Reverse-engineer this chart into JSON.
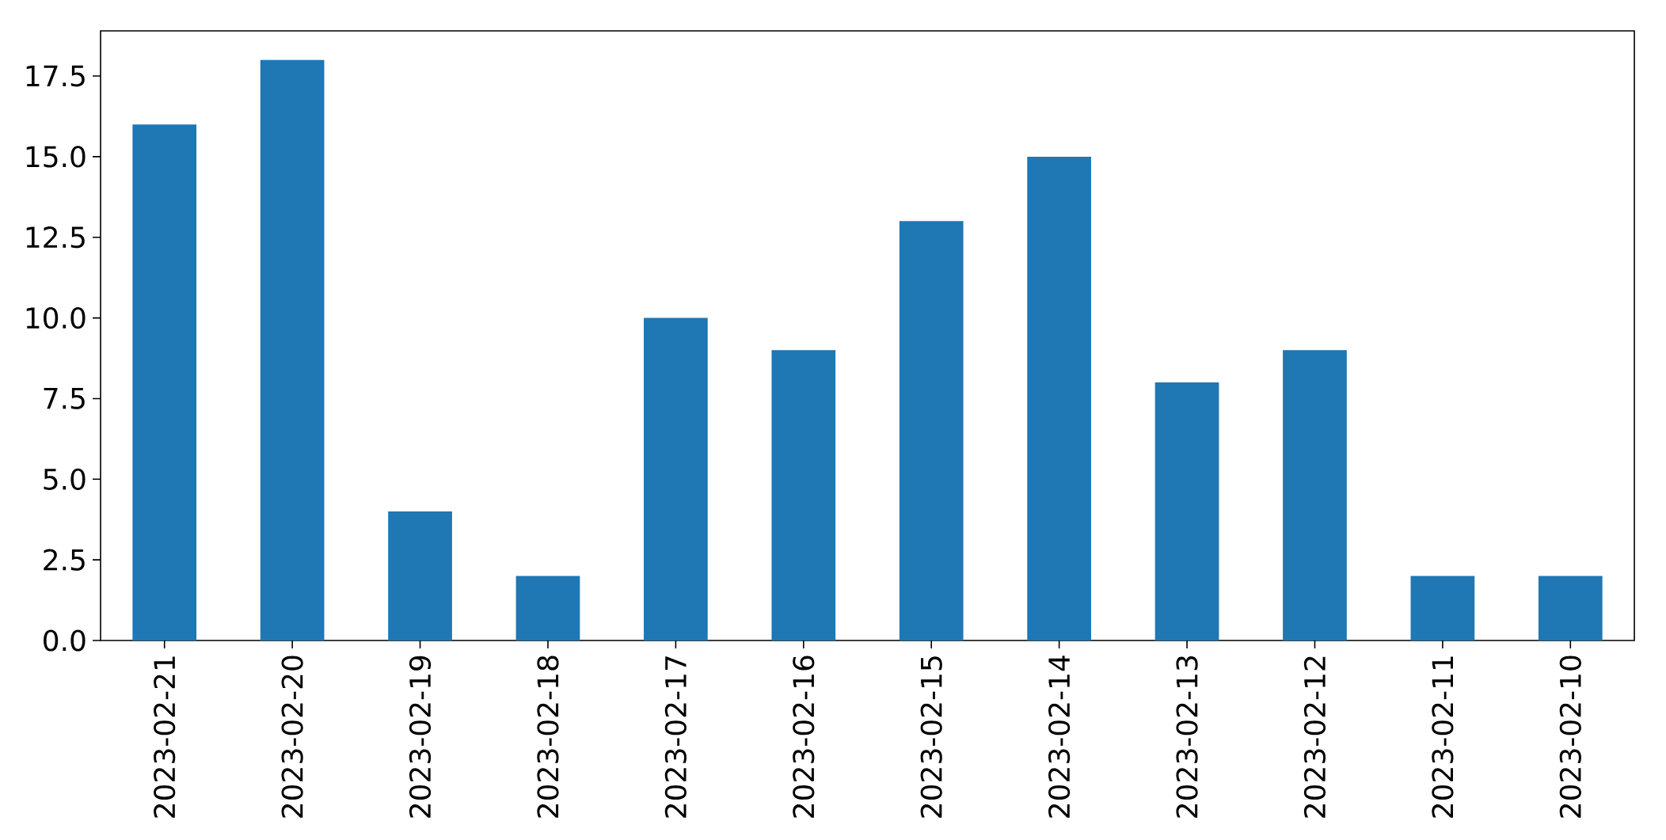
{
  "chart_data": {
    "type": "bar",
    "categories": [
      "2023-02-21",
      "2023-02-20",
      "2023-02-19",
      "2023-02-18",
      "2023-02-17",
      "2023-02-16",
      "2023-02-15",
      "2023-02-14",
      "2023-02-13",
      "2023-02-12",
      "2023-02-11",
      "2023-02-10"
    ],
    "values": [
      16,
      18,
      4,
      2,
      10,
      9,
      13,
      15,
      8,
      9,
      2,
      2
    ],
    "color": "#1f77b4",
    "ylim": [
      0,
      18.9
    ],
    "yticks": [
      {
        "value": 0,
        "label": "0.0"
      },
      {
        "value": 2.5,
        "label": "2.5"
      },
      {
        "value": 5,
        "label": "5.0"
      },
      {
        "value": 7.5,
        "label": "7.5"
      },
      {
        "value": 10,
        "label": "10.0"
      },
      {
        "value": 12.5,
        "label": "12.5"
      },
      {
        "value": 15,
        "label": "15.0"
      },
      {
        "value": 17.5,
        "label": "17.5"
      }
    ]
  }
}
